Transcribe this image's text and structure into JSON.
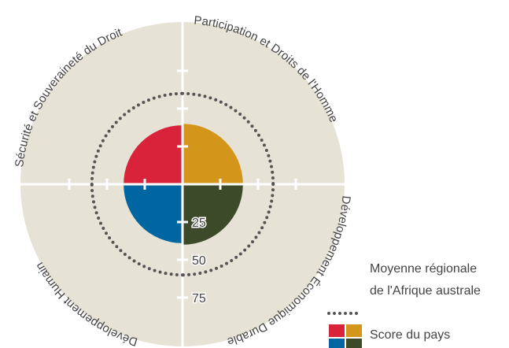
{
  "chart_data": {
    "type": "polar-area",
    "categories": [
      "Sécurité et Souveraineté du Droit",
      "Participation et Droits de l'Homme",
      "Développement Économique Durable",
      "Développement Humain"
    ],
    "series": [
      {
        "name": "Score du pays",
        "values": [
          39,
          40,
          40,
          39
        ],
        "colors": [
          "#d9233b",
          "#d4951b",
          "#3d4a2a",
          "#0066a1"
        ]
      },
      {
        "name": "Moyenne régionale de l'Afrique australe",
        "values": [
          60,
          60,
          60,
          60
        ],
        "color": "#555555"
      }
    ],
    "rlim": [
      0,
      100
    ],
    "rticks": [
      25,
      50,
      75
    ]
  }
}
